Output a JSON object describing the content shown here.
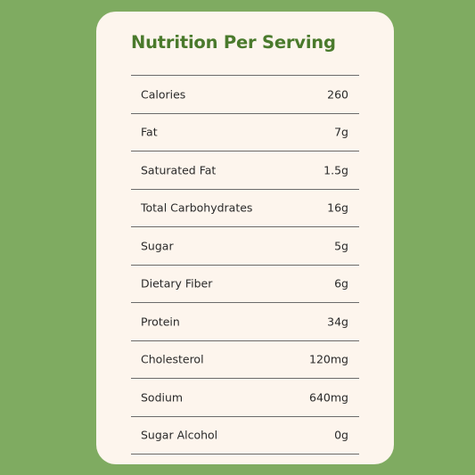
{
  "title": "Nutrition Per Serving",
  "colors": {
    "background": "#7fab61",
    "card": "#fdf5ed",
    "title": "#4a7a2c",
    "rule": "#6b6b6b",
    "text": "#2a2a2a"
  },
  "rows": [
    {
      "label": "Calories",
      "value": "260"
    },
    {
      "label": "Fat",
      "value": "7g"
    },
    {
      "label": "Saturated Fat",
      "value": "1.5g"
    },
    {
      "label": "Total Carbohydrates",
      "value": "16g"
    },
    {
      "label": "Sugar",
      "value": "5g"
    },
    {
      "label": "Dietary Fiber",
      "value": "6g"
    },
    {
      "label": "Protein",
      "value": "34g"
    },
    {
      "label": "Cholesterol",
      "value": "120mg"
    },
    {
      "label": "Sodium",
      "value": "640mg"
    },
    {
      "label": "Sugar Alcohol",
      "value": "0g"
    }
  ]
}
